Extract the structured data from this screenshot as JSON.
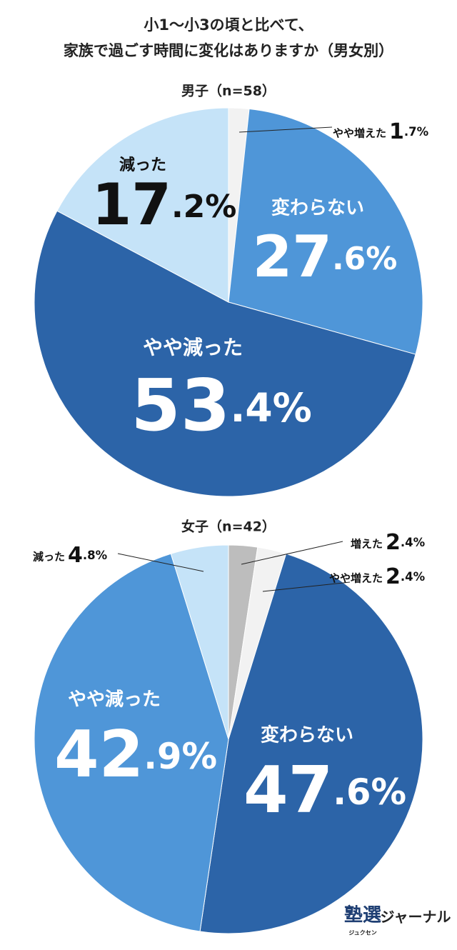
{
  "title": [
    "小1〜小3の頃と比べて、",
    "家族で過ごす時間に変化はありますか（男女別）"
  ],
  "chart_data": [
    {
      "type": "pie",
      "title": "男子（n=58）",
      "categories": [
        "やや増えた",
        "変わらない",
        "やや減った",
        "減った"
      ],
      "values": [
        1.7,
        27.6,
        53.4,
        17.2
      ],
      "value_labels": [
        "1.7%",
        "27.6%",
        "53.4%",
        "17.2%"
      ],
      "colors": [
        "#f2f2f2",
        "#4f96d8",
        "#2c64a8",
        "#c5e3f8"
      ]
    },
    {
      "type": "pie",
      "title": "女子（n=42）",
      "categories": [
        "増えた",
        "やや増えた",
        "変わらない",
        "やや減った",
        "減った"
      ],
      "values": [
        2.4,
        2.4,
        47.6,
        42.9,
        4.8
      ],
      "value_labels": [
        "2.4%",
        "2.4%",
        "47.6%",
        "42.9%",
        "4.8%"
      ],
      "colors": [
        "#bdbdbd",
        "#f2f2f2",
        "#2c64a8",
        "#4f96d8",
        "#c5e3f8"
      ]
    }
  ],
  "logo": {
    "mark": "塾選",
    "reading": "ジュクセン",
    "name": "ジャーナル"
  }
}
